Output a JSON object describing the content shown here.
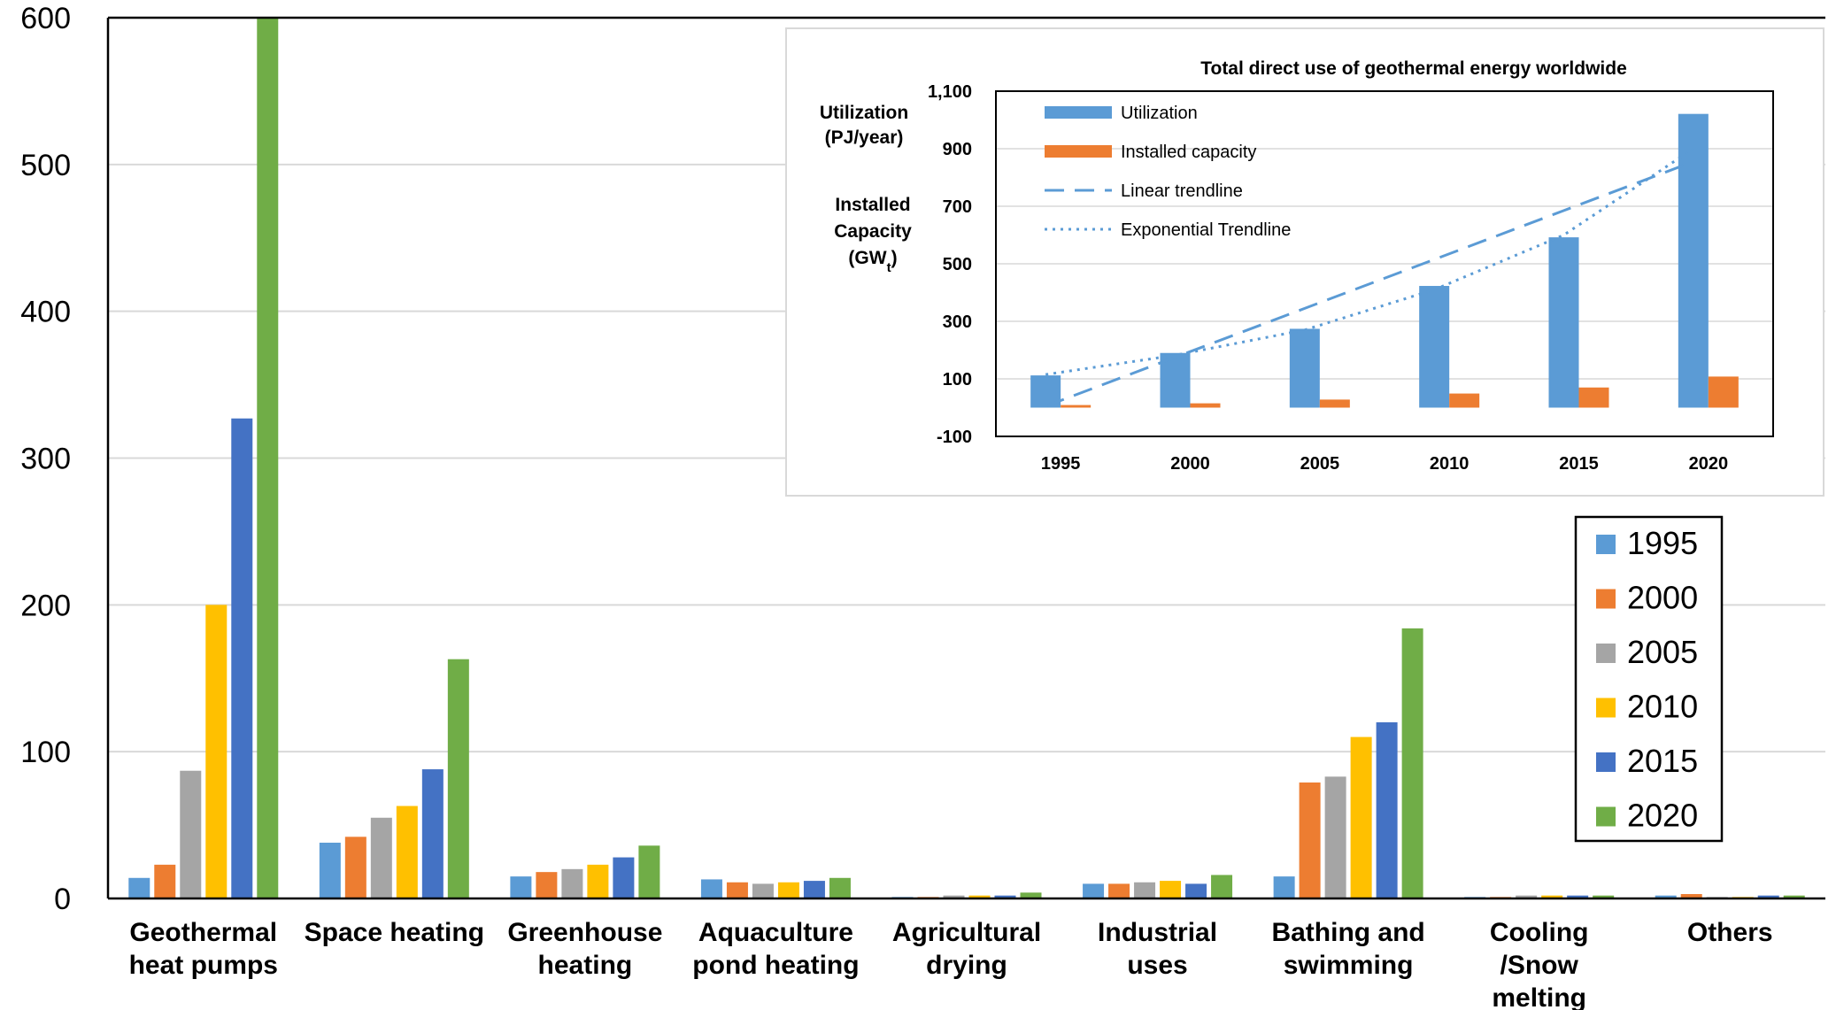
{
  "colors": {
    "1995": "#5b9bd5",
    "2000": "#ed7d31",
    "2005": "#a5a5a5",
    "2010": "#ffc000",
    "2015": "#4472c4",
    "2020": "#70ad47",
    "gridline": "#d9d9d9"
  },
  "chart_data": [
    {
      "type": "bar",
      "title": "",
      "xlabel": "",
      "ylabel": "",
      "ylim": [
        0,
        600
      ],
      "yticks": [
        "0",
        "100",
        "200",
        "300",
        "400",
        "500",
        "600"
      ],
      "grid": true,
      "legend_position": "right",
      "categories": [
        [
          "Geothermal",
          "heat pumps"
        ],
        [
          "Space heating"
        ],
        [
          "Greenhouse",
          "heating"
        ],
        [
          "Aquaculture",
          "pond heating"
        ],
        [
          "Agricultural",
          "drying"
        ],
        [
          "Industrial",
          "uses"
        ],
        [
          "Bathing and",
          "swimming"
        ],
        [
          "Cooling",
          "/Snow",
          "melting"
        ],
        [
          "Others"
        ]
      ],
      "series": [
        {
          "name": "1995",
          "values": [
            14,
            38,
            15,
            13,
            1,
            10,
            15,
            1,
            2
          ]
        },
        {
          "name": "2000",
          "values": [
            23,
            42,
            18,
            11,
            1,
            10,
            79,
            1,
            3
          ]
        },
        {
          "name": "2005",
          "values": [
            87,
            55,
            20,
            10,
            2,
            11,
            83,
            2,
            1
          ]
        },
        {
          "name": "2010",
          "values": [
            200,
            63,
            23,
            11,
            2,
            12,
            110,
            2,
            1
          ]
        },
        {
          "name": "2015",
          "values": [
            327,
            88,
            28,
            12,
            2,
            10,
            120,
            2,
            2
          ]
        },
        {
          "name": "2020",
          "values": [
            600,
            163,
            36,
            14,
            4,
            16,
            184,
            2,
            2
          ]
        }
      ]
    },
    {
      "type": "bar",
      "title": "Total direct use of geothermal energy worldwide",
      "ylabel_lines": [
        [
          "Utilization",
          "(PJ/year)"
        ],
        [
          "Installed",
          "Capacity",
          "(GWt)"
        ]
      ],
      "ylim": [
        -100,
        1100
      ],
      "yticks": [
        "-100",
        "100",
        "300",
        "500",
        "700",
        "900",
        "1,100"
      ],
      "grid": true,
      "legend_position": "top-left",
      "categories": [
        "1995",
        "2000",
        "2005",
        "2010",
        "2015",
        "2020"
      ],
      "series": [
        {
          "name": "Utilization",
          "values": [
            112,
            190,
            274,
            423,
            592,
            1021
          ]
        },
        {
          "name": "Installed capacity",
          "values": [
            9,
            15,
            28,
            49,
            70,
            108
          ]
        }
      ],
      "trendlines": [
        {
          "name": "Linear trendline",
          "values": [
            5,
            175,
            345,
            515,
            685,
            855
          ]
        },
        {
          "name": "Exponential Trendline",
          "values": [
            115,
            182,
            270,
            410,
            600,
            900
          ]
        }
      ]
    }
  ]
}
